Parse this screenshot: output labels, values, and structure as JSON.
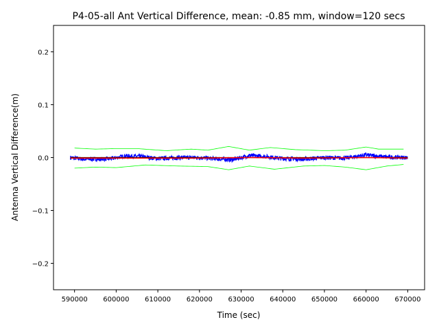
{
  "chart_data": {
    "type": "line",
    "title": "P4-05-all Ant Vertical Difference, mean: -0.85 mm, window=120 secs",
    "xlabel": "Time (sec)",
    "ylabel": "Antenna Vertical Difference(m)",
    "xlim": [
      584950,
      674050
    ],
    "ylim": [
      -0.25,
      0.25
    ],
    "xticks": [
      590000,
      600000,
      610000,
      620000,
      630000,
      640000,
      650000,
      660000,
      670000
    ],
    "xtick_labels": [
      "590000",
      "600000",
      "610000",
      "620000",
      "630000",
      "640000",
      "650000",
      "660000",
      "670000"
    ],
    "yticks": [
      0.2,
      0.1,
      0.0,
      -0.1,
      -0.2
    ],
    "ytick_labels": [
      "0.2",
      "0.1",
      "0.0",
      "−0.1",
      "−0.2"
    ],
    "grid": false,
    "mean_mm": -0.85,
    "series": [
      {
        "name": "vertical difference",
        "color": "#0000ff",
        "noise_amplitude": 0.004,
        "x": [
          589000,
          592000,
          596000,
          599000,
          602000,
          606000,
          610000,
          615000,
          620000,
          625000,
          628000,
          632000,
          636000,
          640000,
          645000,
          650000,
          655000,
          660000,
          665000,
          670000
        ],
        "y": [
          0.0,
          -0.003,
          -0.003,
          -0.002,
          0.003,
          0.002,
          -0.002,
          0.0,
          0.0,
          -0.003,
          -0.004,
          0.004,
          0.002,
          -0.002,
          -0.003,
          0.0,
          -0.001,
          0.005,
          0.001,
          0.0
        ]
      },
      {
        "name": "raw",
        "color": "#000000",
        "x": [
          589000,
          670000
        ],
        "y": [
          0.0,
          0.0
        ]
      },
      {
        "name": "running mean",
        "color": "#ff0000",
        "x": [
          589000,
          600000,
          620000,
          632000,
          645000,
          660000,
          670000
        ],
        "y": [
          -0.001,
          -0.001,
          -0.001,
          0.0,
          -0.001,
          0.0,
          -0.001
        ]
      },
      {
        "name": "upper envelope",
        "color": "#00ff00",
        "x": [
          590000,
          595000,
          600000,
          605000,
          612000,
          618000,
          622000,
          627000,
          632000,
          637000,
          643000,
          650000,
          655000,
          660000,
          663000,
          669000
        ],
        "y": [
          0.018,
          0.016,
          0.017,
          0.017,
          0.013,
          0.016,
          0.014,
          0.021,
          0.014,
          0.019,
          0.015,
          0.013,
          0.014,
          0.02,
          0.016,
          0.016
        ]
      },
      {
        "name": "lower envelope",
        "color": "#00ff00",
        "x": [
          590000,
          595000,
          600000,
          607000,
          615000,
          622000,
          627000,
          632000,
          638000,
          645000,
          650000,
          655000,
          660000,
          665000,
          669000
        ],
        "y": [
          -0.02,
          -0.018,
          -0.019,
          -0.014,
          -0.016,
          -0.017,
          -0.023,
          -0.016,
          -0.022,
          -0.016,
          -0.015,
          -0.018,
          -0.023,
          -0.016,
          -0.013
        ]
      }
    ]
  }
}
